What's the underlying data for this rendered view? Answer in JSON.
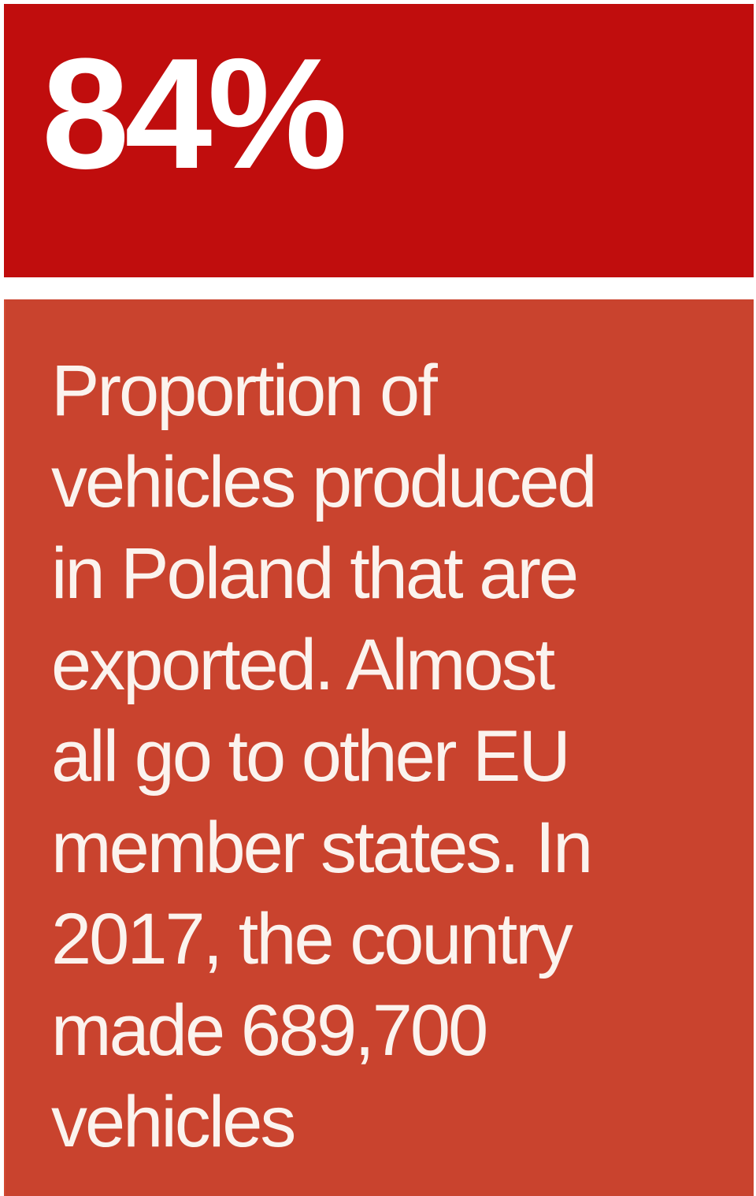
{
  "stat": {
    "value": "84%",
    "background_color": "#c00d0d"
  },
  "description": {
    "background_color": "#c9432e",
    "lines": [
      "Proportion of",
      "vehicles produced",
      "in Poland that are",
      "exported. Almost",
      "all go to other EU",
      "member states. In",
      "2017, the country",
      "made 689,700",
      "vehicles"
    ]
  }
}
